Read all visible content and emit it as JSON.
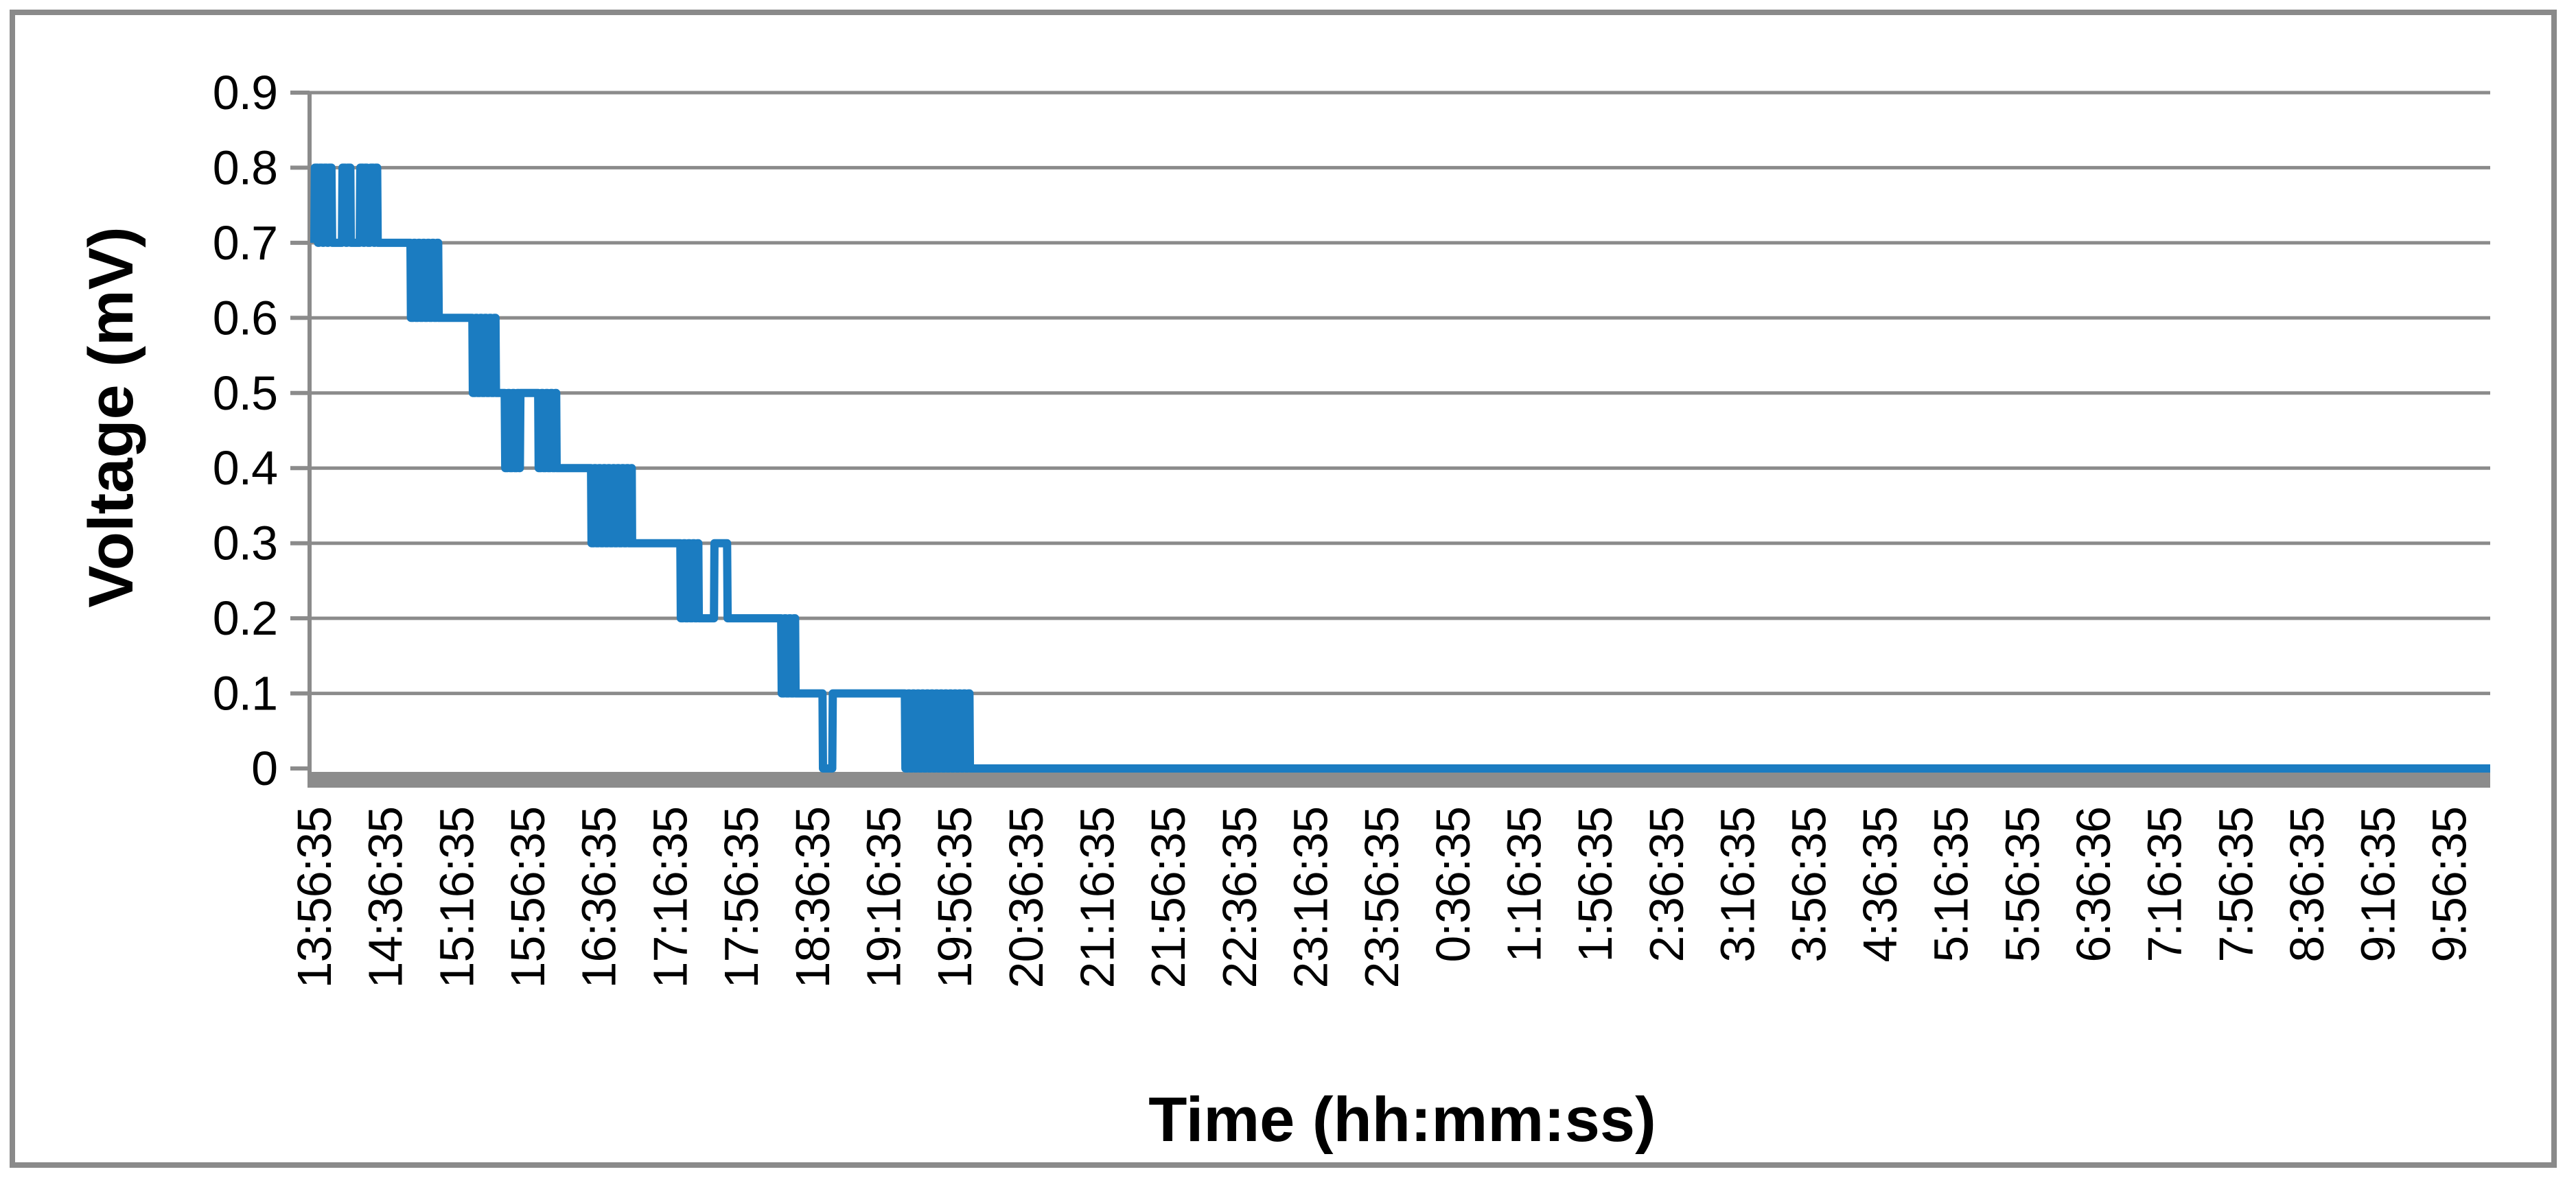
{
  "chart_data": {
    "type": "line",
    "title": "",
    "xlabel": "Time (hh:mm:ss)",
    "ylabel": "Voltage (mV)",
    "legend": "none",
    "grid": "horizontal major gridlines only",
    "ylim": [
      0,
      0.9
    ],
    "ytick_values": [
      0.9,
      0.8,
      0.7,
      0.6,
      0.5,
      0.4,
      0.3,
      0.2,
      0.1,
      0
    ],
    "ytick_labels": [
      "0.9",
      "0.8",
      "0.7",
      "0.6",
      "0.5",
      "0.4",
      "0.3",
      "0.2",
      "0.1",
      "0"
    ],
    "xtick_labels": [
      "13:56:35",
      "14:36:35",
      "15:16:35",
      "15:56:35",
      "16:36:35",
      "17:16:35",
      "17:56:35",
      "18:36:35",
      "19:16:35",
      "19:56:35",
      "20:36:35",
      "21:16:35",
      "21:56:35",
      "22:36:35",
      "23:16:35",
      "23:56:35",
      "0:36:35",
      "1:16:35",
      "1:56:35",
      "2:36:35",
      "3:16:35",
      "3:56:35",
      "4:36:35",
      "5:16:35",
      "5:56:35",
      "6:36:36",
      "7:16:35",
      "7:56:35",
      "8:36:35",
      "9:16:35",
      "9:56:35"
    ],
    "xtick_interval_minutes": 40,
    "x_unit": "minutes after 13:56:35",
    "xlim": [
      0,
      1223
    ],
    "series": [
      {
        "name": "Voltage",
        "color": "#1B7CC1",
        "points": [
          [
            0,
            0.7
          ],
          [
            0.3,
            0.8
          ],
          [
            1.8,
            0.8
          ],
          [
            2.1,
            0.7
          ],
          [
            2.6,
            0.7
          ],
          [
            2.9,
            0.8
          ],
          [
            4.4,
            0.8
          ],
          [
            4.7,
            0.7
          ],
          [
            5.2,
            0.7
          ],
          [
            5.5,
            0.8
          ],
          [
            7,
            0.8
          ],
          [
            7.3,
            0.7
          ],
          [
            7.8,
            0.7
          ],
          [
            8.1,
            0.8
          ],
          [
            9.6,
            0.8
          ],
          [
            10,
            0.7
          ],
          [
            15.5,
            0.7
          ],
          [
            15.8,
            0.8
          ],
          [
            17.5,
            0.8
          ],
          [
            17.8,
            0.7
          ],
          [
            18.3,
            0.7
          ],
          [
            18.6,
            0.8
          ],
          [
            20.2,
            0.8
          ],
          [
            20.5,
            0.7
          ],
          [
            25.5,
            0.7
          ],
          [
            25.8,
            0.8
          ],
          [
            27.3,
            0.8
          ],
          [
            27.6,
            0.7
          ],
          [
            28.1,
            0.7
          ],
          [
            28.4,
            0.8
          ],
          [
            29.6,
            0.8
          ],
          [
            30,
            0.7
          ],
          [
            31.3,
            0.7
          ],
          [
            31.6,
            0.8
          ],
          [
            33.2,
            0.8
          ],
          [
            33.5,
            0.7
          ],
          [
            34,
            0.7
          ],
          [
            34.3,
            0.8
          ],
          [
            35.3,
            0.8
          ],
          [
            35.6,
            0.7
          ],
          [
            54,
            0.7
          ],
          [
            54.3,
            0.6
          ],
          [
            55.6,
            0.6
          ],
          [
            55.9,
            0.7
          ],
          [
            56.6,
            0.7
          ],
          [
            56.9,
            0.6
          ],
          [
            58.2,
            0.6
          ],
          [
            58.5,
            0.7
          ],
          [
            59.2,
            0.7
          ],
          [
            59.5,
            0.6
          ],
          [
            60.8,
            0.6
          ],
          [
            61.1,
            0.7
          ],
          [
            61.8,
            0.7
          ],
          [
            62.1,
            0.6
          ],
          [
            63.4,
            0.6
          ],
          [
            63.7,
            0.7
          ],
          [
            64.4,
            0.7
          ],
          [
            64.7,
            0.6
          ],
          [
            66,
            0.6
          ],
          [
            66.3,
            0.7
          ],
          [
            67,
            0.7
          ],
          [
            67.3,
            0.6
          ],
          [
            68.6,
            0.6
          ],
          [
            68.9,
            0.7
          ],
          [
            69.6,
            0.7
          ],
          [
            69.9,
            0.6
          ],
          [
            70.6,
            0.6
          ],
          [
            88.8,
            0.6
          ],
          [
            89.1,
            0.5
          ],
          [
            90.4,
            0.5
          ],
          [
            90.7,
            0.6
          ],
          [
            91.4,
            0.6
          ],
          [
            91.7,
            0.5
          ],
          [
            93,
            0.5
          ],
          [
            93.3,
            0.6
          ],
          [
            94,
            0.6
          ],
          [
            94.3,
            0.5
          ],
          [
            95.6,
            0.5
          ],
          [
            95.9,
            0.6
          ],
          [
            96.6,
            0.6
          ],
          [
            96.9,
            0.5
          ],
          [
            98.2,
            0.5
          ],
          [
            98.5,
            0.6
          ],
          [
            99.2,
            0.6
          ],
          [
            99.5,
            0.5
          ],
          [
            100.8,
            0.5
          ],
          [
            101.1,
            0.6
          ],
          [
            101.8,
            0.6
          ],
          [
            102.1,
            0.5
          ],
          [
            103,
            0.5
          ],
          [
            107,
            0.5
          ],
          [
            107.3,
            0.4
          ],
          [
            108.6,
            0.4
          ],
          [
            108.9,
            0.5
          ],
          [
            109.6,
            0.5
          ],
          [
            109.9,
            0.4
          ],
          [
            111.2,
            0.4
          ],
          [
            111.5,
            0.5
          ],
          [
            112.2,
            0.5
          ],
          [
            112.5,
            0.4
          ],
          [
            113.8,
            0.4
          ],
          [
            114.1,
            0.5
          ],
          [
            114.8,
            0.5
          ],
          [
            115.1,
            0.4
          ],
          [
            115.5,
            0.4
          ],
          [
            115.8,
            0.5
          ],
          [
            125.8,
            0.5
          ],
          [
            126.1,
            0.4
          ],
          [
            127.4,
            0.4
          ],
          [
            127.7,
            0.5
          ],
          [
            128.4,
            0.5
          ],
          [
            128.7,
            0.4
          ],
          [
            130,
            0.4
          ],
          [
            130.3,
            0.5
          ],
          [
            131,
            0.5
          ],
          [
            131.3,
            0.4
          ],
          [
            132.6,
            0.4
          ],
          [
            132.9,
            0.5
          ],
          [
            133.6,
            0.5
          ],
          [
            133.9,
            0.4
          ],
          [
            135.2,
            0.4
          ],
          [
            135.5,
            0.5
          ],
          [
            135.9,
            0.5
          ],
          [
            136.2,
            0.4
          ],
          [
            155.5,
            0.4
          ],
          [
            155.8,
            0.3
          ],
          [
            157.1,
            0.3
          ],
          [
            157.4,
            0.4
          ],
          [
            158.1,
            0.4
          ],
          [
            158.4,
            0.3
          ],
          [
            159.7,
            0.3
          ],
          [
            160,
            0.4
          ],
          [
            160.7,
            0.4
          ],
          [
            161,
            0.3
          ],
          [
            162.3,
            0.3
          ],
          [
            162.6,
            0.4
          ],
          [
            163.3,
            0.4
          ],
          [
            163.6,
            0.3
          ],
          [
            164.9,
            0.3
          ],
          [
            165.2,
            0.4
          ],
          [
            165.9,
            0.4
          ],
          [
            166.2,
            0.3
          ],
          [
            167.5,
            0.3
          ],
          [
            167.8,
            0.4
          ],
          [
            168.5,
            0.4
          ],
          [
            168.8,
            0.3
          ],
          [
            170.1,
            0.3
          ],
          [
            170.4,
            0.4
          ],
          [
            171.1,
            0.4
          ],
          [
            171.4,
            0.3
          ],
          [
            172.7,
            0.3
          ],
          [
            173,
            0.4
          ],
          [
            173.7,
            0.4
          ],
          [
            174,
            0.3
          ],
          [
            175.3,
            0.3
          ],
          [
            175.6,
            0.4
          ],
          [
            176.3,
            0.4
          ],
          [
            176.6,
            0.3
          ],
          [
            177.9,
            0.3
          ],
          [
            178.2,
            0.4
          ],
          [
            178.4,
            0.4
          ],
          [
            178.6,
            0.3
          ],
          [
            205.7,
            0.3
          ],
          [
            206,
            0.2
          ],
          [
            207.3,
            0.2
          ],
          [
            207.6,
            0.3
          ],
          [
            208.3,
            0.3
          ],
          [
            208.6,
            0.2
          ],
          [
            209.9,
            0.2
          ],
          [
            210.2,
            0.3
          ],
          [
            210.9,
            0.3
          ],
          [
            211.2,
            0.2
          ],
          [
            212.5,
            0.2
          ],
          [
            212.8,
            0.3
          ],
          [
            213.5,
            0.3
          ],
          [
            213.8,
            0.2
          ],
          [
            215.1,
            0.2
          ],
          [
            215.4,
            0.3
          ],
          [
            215.8,
            0.3
          ],
          [
            216.1,
            0.2
          ],
          [
            224.6,
            0.2
          ],
          [
            224.9,
            0.3
          ],
          [
            232,
            0.3
          ],
          [
            232.3,
            0.2
          ],
          [
            262.4,
            0.2
          ],
          [
            262.7,
            0.1
          ],
          [
            264,
            0.1
          ],
          [
            264.3,
            0.2
          ],
          [
            265,
            0.2
          ],
          [
            265.3,
            0.1
          ],
          [
            266.6,
            0.1
          ],
          [
            266.9,
            0.2
          ],
          [
            267.6,
            0.2
          ],
          [
            267.9,
            0.1
          ],
          [
            269.2,
            0.1
          ],
          [
            269.5,
            0.2
          ],
          [
            270.2,
            0.2
          ],
          [
            270.5,
            0.1
          ],
          [
            271.8,
            0.1
          ],
          [
            272.1,
            0.1
          ],
          [
            285.6,
            0.1
          ],
          [
            285.9,
            0
          ],
          [
            291.1,
            0
          ],
          [
            291.4,
            0.1
          ],
          [
            331.9,
            0.1
          ],
          [
            332.2,
            0
          ],
          [
            333.5,
            0
          ],
          [
            333.8,
            0.1
          ],
          [
            334.5,
            0.1
          ],
          [
            334.8,
            0
          ],
          [
            336.1,
            0
          ],
          [
            336.4,
            0.1
          ],
          [
            337.1,
            0.1
          ],
          [
            337.4,
            0
          ],
          [
            338.7,
            0
          ],
          [
            339,
            0.1
          ],
          [
            339.7,
            0.1
          ],
          [
            340,
            0
          ],
          [
            341.3,
            0
          ],
          [
            341.6,
            0.1
          ],
          [
            342.3,
            0.1
          ],
          [
            342.6,
            0
          ],
          [
            343.9,
            0
          ],
          [
            344.2,
            0.1
          ],
          [
            344.9,
            0.1
          ],
          [
            345.2,
            0
          ],
          [
            346.5,
            0
          ],
          [
            346.8,
            0.1
          ],
          [
            347.5,
            0.1
          ],
          [
            347.8,
            0
          ],
          [
            349.1,
            0
          ],
          [
            349.4,
            0.1
          ],
          [
            350.1,
            0.1
          ],
          [
            350.4,
            0
          ],
          [
            351.7,
            0
          ],
          [
            352,
            0.1
          ],
          [
            352.7,
            0.1
          ],
          [
            353,
            0
          ],
          [
            354.3,
            0
          ],
          [
            354.6,
            0.1
          ],
          [
            355.3,
            0.1
          ],
          [
            355.6,
            0
          ],
          [
            356.9,
            0
          ],
          [
            357.2,
            0.1
          ],
          [
            357.9,
            0.1
          ],
          [
            358.2,
            0
          ],
          [
            359.5,
            0
          ],
          [
            359.8,
            0.1
          ],
          [
            360.5,
            0.1
          ],
          [
            360.8,
            0
          ],
          [
            362.1,
            0
          ],
          [
            362.4,
            0.1
          ],
          [
            363.1,
            0.1
          ],
          [
            363.4,
            0
          ],
          [
            364.7,
            0
          ],
          [
            365,
            0.1
          ],
          [
            365.7,
            0.1
          ],
          [
            366,
            0
          ],
          [
            367.3,
            0
          ],
          [
            367.6,
            0.1
          ],
          [
            368.2,
            0.1
          ],
          [
            368.5,
            0
          ],
          [
            1223,
            0
          ]
        ]
      }
    ]
  },
  "colors": {
    "series_blue": "#1B7CC1",
    "gridline_gray": "#8B8B8B",
    "axis_gray": "#8B8B8B",
    "baseline_gray": "#8C8C8C",
    "border_gray": "#8A8A8A",
    "text_black": "#000000",
    "background": "#FFFFFF"
  }
}
